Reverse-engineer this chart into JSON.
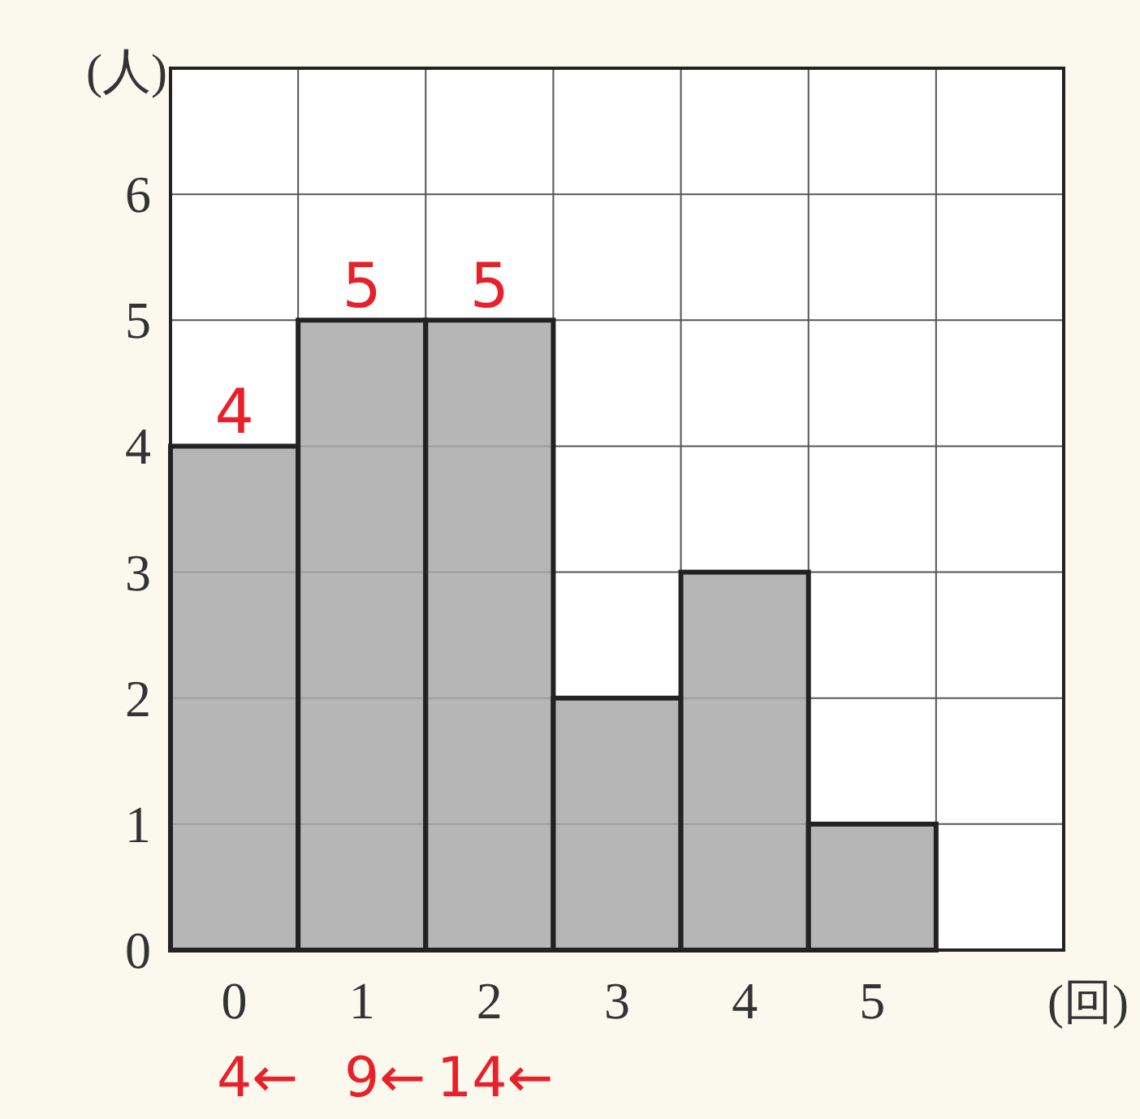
{
  "chart_data": {
    "type": "bar",
    "ylabel": "(人)",
    "xlabel": "(回)",
    "categories": [
      "0",
      "1",
      "2",
      "3",
      "4",
      "5",
      null
    ],
    "values": [
      4,
      5,
      5,
      2,
      3,
      1,
      null
    ],
    "color": "#a9a9a9",
    "value_labels": [
      "4",
      "5",
      "5",
      null,
      null,
      null,
      null
    ],
    "ylim": [
      0,
      7
    ],
    "yticks": [
      0,
      1,
      2,
      3,
      4,
      5,
      6
    ],
    "grid": true,
    "annotations": [
      "4←",
      "9←",
      "14←"
    ]
  }
}
